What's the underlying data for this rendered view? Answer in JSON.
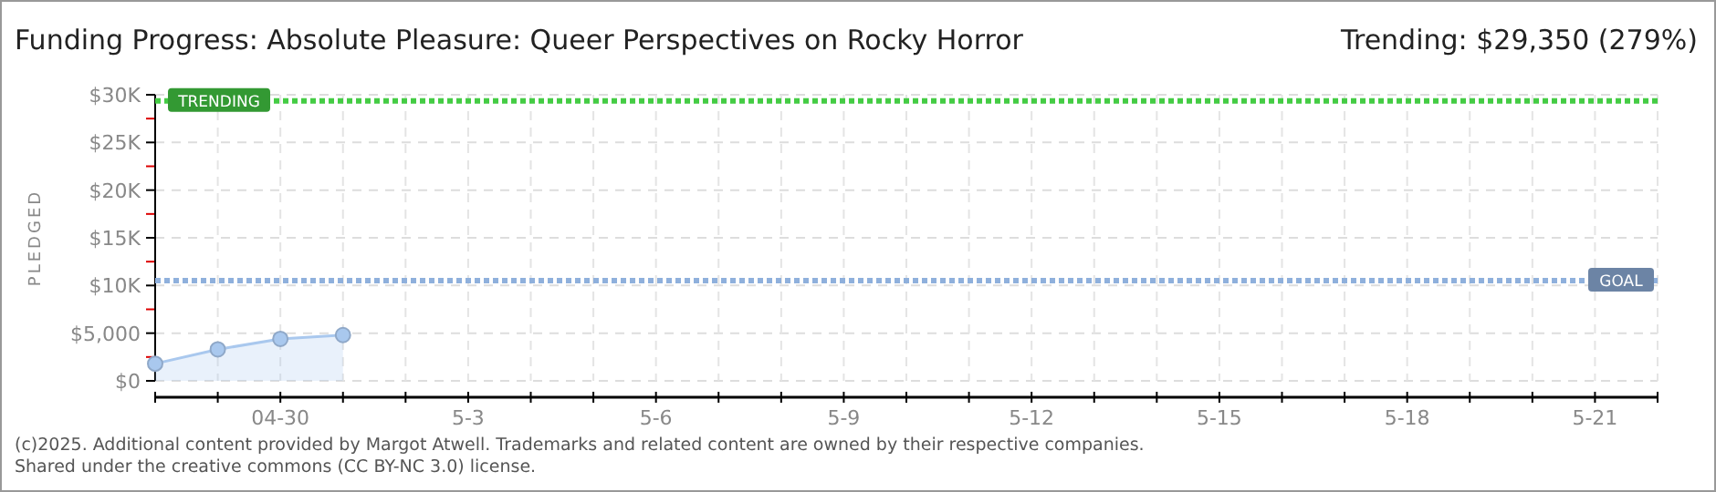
{
  "chart_data": {
    "type": "area",
    "title": "Funding Progress: Absolute Pleasure: Queer Perspectives on Rocky Horror",
    "subtitle": "Trending: $29,350 (279%)",
    "ylabel": "PLEDGED",
    "x": [
      "2025-04-28",
      "2025-04-29",
      "2025-04-30",
      "2025-05-01"
    ],
    "series": [
      {
        "color": "#a9c8ee",
        "values": [
          1800,
          3300,
          4400,
          4800
        ]
      }
    ],
    "marker": "circle",
    "grid": true,
    "xlim": [
      "2025-04-28",
      "2025-05-22"
    ],
    "xticks": [
      {
        "value": "2025-04-28",
        "label": null
      },
      {
        "value": "2025-04-29",
        "label": null
      },
      {
        "value": "2025-04-30",
        "label": "04-30"
      },
      {
        "value": "2025-05-01",
        "label": null
      },
      {
        "value": "2025-05-02",
        "label": null
      },
      {
        "value": "2025-05-03",
        "label": "5-3"
      },
      {
        "value": "2025-05-04",
        "label": null
      },
      {
        "value": "2025-05-05",
        "label": null
      },
      {
        "value": "2025-05-06",
        "label": "5-6"
      },
      {
        "value": "2025-05-07",
        "label": null
      },
      {
        "value": "2025-05-08",
        "label": null
      },
      {
        "value": "2025-05-09",
        "label": "5-9"
      },
      {
        "value": "2025-05-10",
        "label": null
      },
      {
        "value": "2025-05-11",
        "label": null
      },
      {
        "value": "2025-05-12",
        "label": "5-12"
      },
      {
        "value": "2025-05-13",
        "label": null
      },
      {
        "value": "2025-05-14",
        "label": null
      },
      {
        "value": "2025-05-15",
        "label": "5-15"
      },
      {
        "value": "2025-05-16",
        "label": null
      },
      {
        "value": "2025-05-17",
        "label": null
      },
      {
        "value": "2025-05-18",
        "label": "5-18"
      },
      {
        "value": "2025-05-19",
        "label": null
      },
      {
        "value": "2025-05-20",
        "label": null
      },
      {
        "value": "2025-05-21",
        "label": "5-21"
      },
      {
        "value": "2025-05-22",
        "label": null
      }
    ],
    "ylim": [
      0,
      30000
    ],
    "yticks": [
      {
        "value": 0,
        "label": "$0"
      },
      {
        "value": 2500,
        "label": null
      },
      {
        "value": 5000,
        "label": "$5,000"
      },
      {
        "value": 7500,
        "label": null
      },
      {
        "value": 10000,
        "label": "$10K"
      },
      {
        "value": 12500,
        "label": null
      },
      {
        "value": 15000,
        "label": "$15K"
      },
      {
        "value": 17500,
        "label": null
      },
      {
        "value": 20000,
        "label": "$20K"
      },
      {
        "value": 22500,
        "label": null
      },
      {
        "value": 25000,
        "label": "$25K"
      },
      {
        "value": 27500,
        "label": null
      },
      {
        "value": 30000,
        "label": "$30K"
      }
    ],
    "ref_lines": [
      {
        "axis": "y",
        "value": 29350,
        "label": "TRENDING",
        "color": "#44cc44",
        "line_style": "dotted"
      },
      {
        "axis": "y",
        "value": 10500,
        "label": "GOAL",
        "color": "#8fb0dc",
        "line_style": "dotted"
      }
    ],
    "annotations": [
      "(c)2025. Additional content provided by Margot Atwell. Trademarks and related content are owned by their respective companies.",
      "Shared under the creative commons (CC BY-NC 3.0) license."
    ]
  }
}
